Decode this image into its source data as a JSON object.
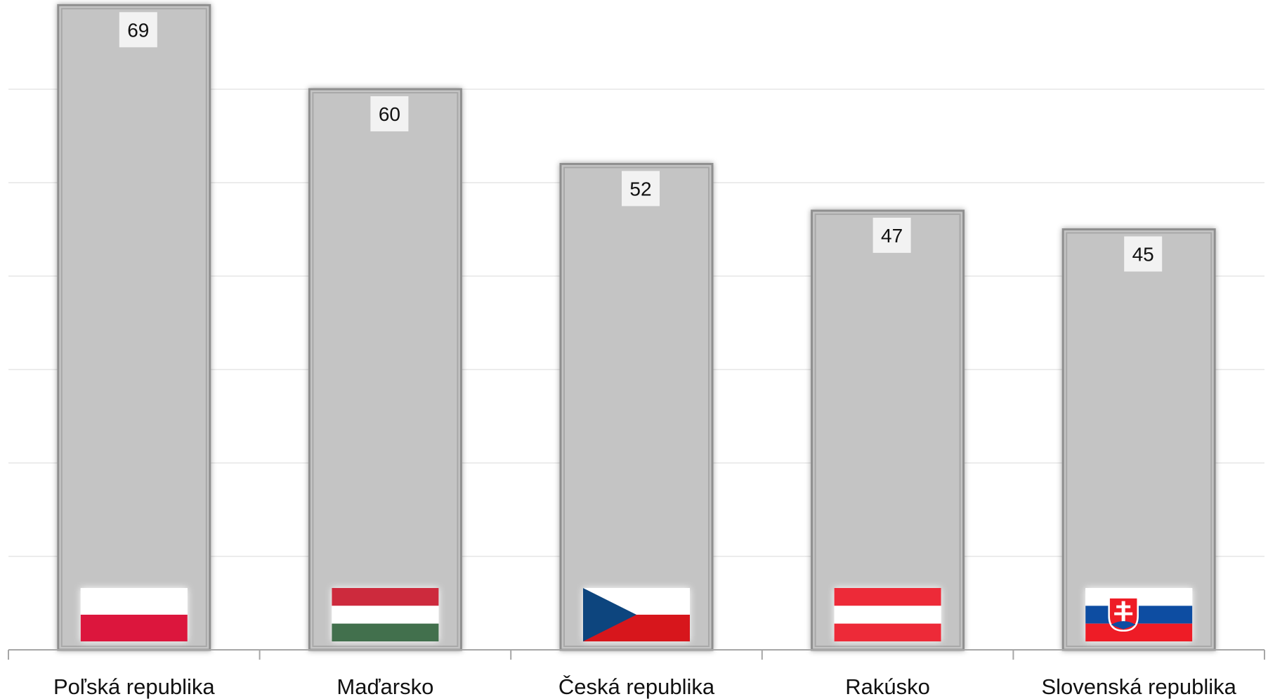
{
  "chart_data": {
    "type": "bar",
    "categories": [
      "Poľská republika",
      "Maďarsko",
      "Česká republika",
      "Rakúsko",
      "Slovenská republika"
    ],
    "values": [
      69,
      60,
      52,
      47,
      45
    ],
    "data_labels": [
      "69",
      "60",
      "52",
      "47",
      "45"
    ],
    "flags": [
      "poland-flag-icon",
      "hungary-flag-icon",
      "czech-flag-icon",
      "austria-flag-icon",
      "slovakia-flag-icon"
    ],
    "title": "",
    "xlabel": "",
    "ylabel": "",
    "ylim": [
      0,
      70
    ],
    "grid": true,
    "legend": "none",
    "colors": {
      "bar_fill": "#c4c4c4",
      "bar_border": "#8f8f8f",
      "gridline": "#e6e6e6",
      "axis": "#a6a6a6",
      "label_box": "#f2f2f2"
    }
  }
}
